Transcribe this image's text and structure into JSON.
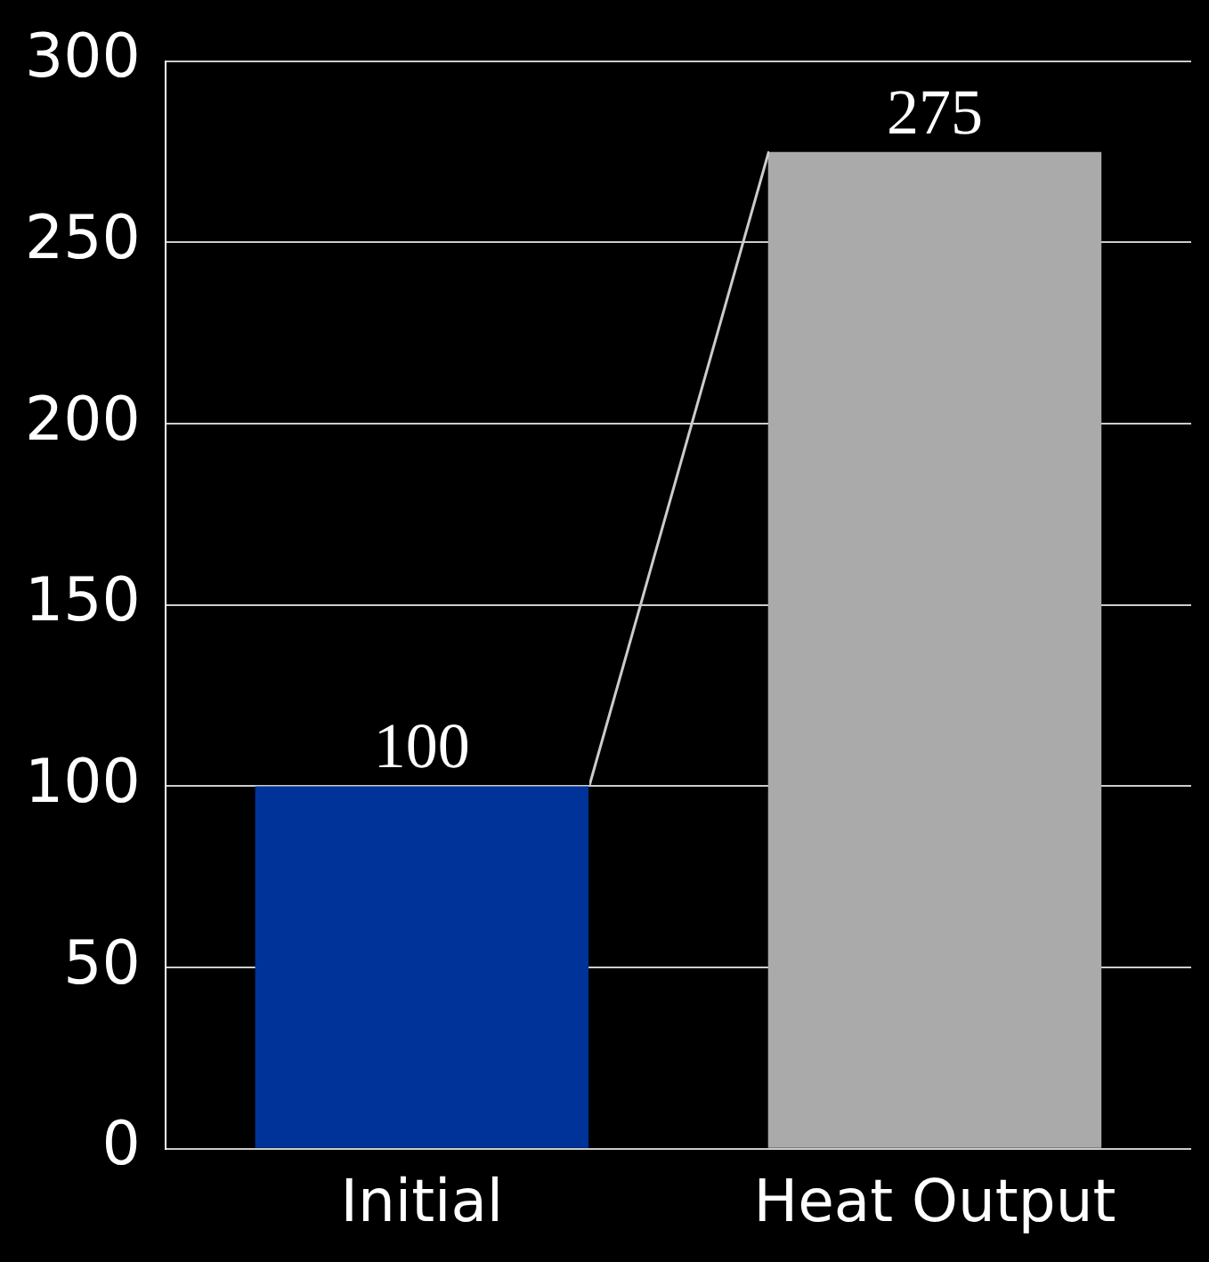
{
  "chart_data": {
    "type": "bar",
    "categories": [
      "Initial",
      "Heat Output"
    ],
    "values": [
      100,
      275
    ],
    "colors": [
      "#003399",
      "#aaaaaa"
    ],
    "ylim": [
      0,
      300
    ],
    "yticks": [
      0,
      50,
      100,
      150,
      200,
      250,
      300
    ],
    "grid": "y",
    "data_labels": true
  }
}
